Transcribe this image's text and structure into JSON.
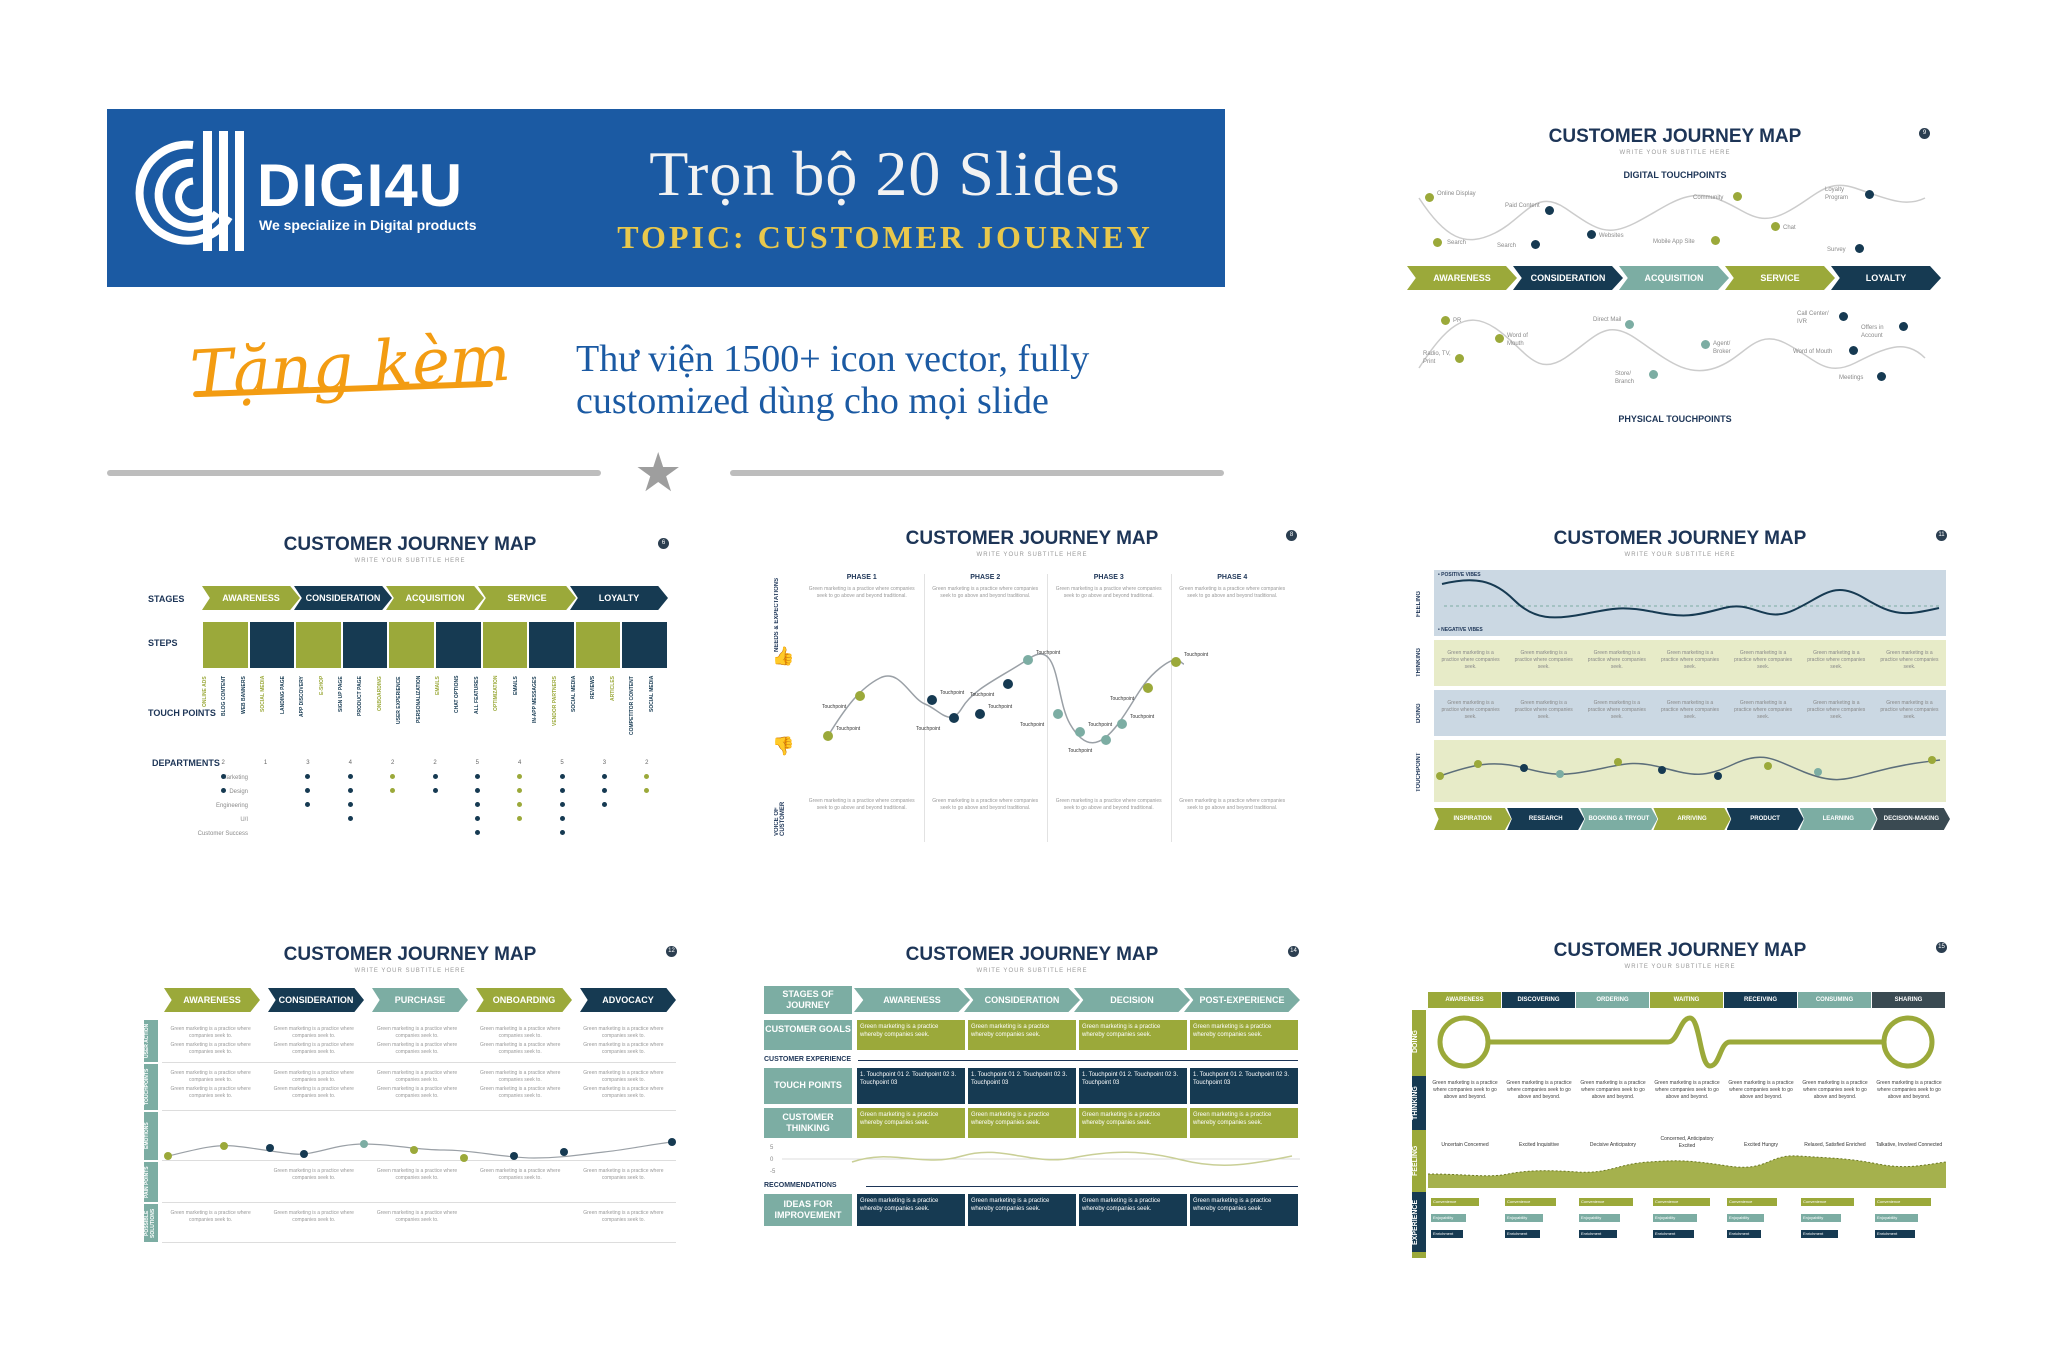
{
  "banner": {
    "logo_text": "DIGI4U",
    "logo_tagline": "We specialize in Digital products",
    "title": "Trọn bộ 20 Slides",
    "topic": "TOPIC: CUSTOMER JOURNEY"
  },
  "gift_label": "Tặng kèm",
  "library_text": "Thư viện 1500+ icon vector, fully customized dùng cho mọi slide",
  "colors": {
    "banner": "#1b5aa3",
    "olive": "#9ba93a",
    "navy": "#163a52",
    "teal": "#7cada3",
    "accent": "#f39c12"
  },
  "slides": {
    "title": "CUSTOMER JOURNEY MAP",
    "subtitle": "WRITE YOUR SUBTITLE HERE",
    "slide_a": {
      "page": "9",
      "digital_heading": "DIGITAL TOUCHPOINTS",
      "physical_heading": "PHYSICAL TOUCHPOINTS",
      "stages": [
        "AWARENESS",
        "CONSIDERATION",
        "ACQUISITION",
        "SERVICE",
        "LOYALTY"
      ],
      "digital_points": [
        "Online Display",
        "Search",
        "Paid Content",
        "Search",
        "Websites",
        "Community",
        "Mobile App Site",
        "Chat",
        "Loyalty Program",
        "Survey"
      ],
      "physical_points": [
        "PR",
        "Radio, TV, Print",
        "Word of Mouth",
        "Direct Mail",
        "Store/ Branch",
        "Agent/ Broker",
        "Call Center/ IVR",
        "Word of Mouth",
        "Offers in Account",
        "Meetings"
      ]
    },
    "slide_b": {
      "page": "6",
      "row_stages": "STAGES",
      "row_steps": "STEPS",
      "row_touch": "TOUCH POINTS",
      "row_departments": "DEPARTMENTS",
      "stages": [
        "AWARENESS",
        "CONSIDERATION",
        "ACQUISITION",
        "SERVICE",
        "LOYALTY"
      ],
      "departments": [
        "Marketing",
        "Design",
        "Engineering",
        "U/I",
        "Customer Success"
      ],
      "touchpoints": [
        "ONLINE ADS",
        "BLOG CONTENT",
        "WEB BANNERS",
        "SOCIAL MEDIA",
        "LANDING PAGE",
        "APP DISCOVERY",
        "E-SHOP",
        "SIGN UP PAGE",
        "PRODUCT PAGE",
        "ONBOARDING",
        "USER EXPERIENCE",
        "PERSONALIZATION",
        "EMAILS",
        "CHAT OPTIONS",
        "ALL FEATURES",
        "OPTIMIZATION",
        "EMAILS",
        "IN-APP MESSAGES",
        "VENDOR PARTNERS",
        "SOCIAL MEDIA",
        "REVIEWS",
        "ARTICLES",
        "COMPETITOR CONTENT",
        "SOCIAL MEDIA"
      ],
      "counts": [
        "2",
        "1",
        "3",
        "4",
        "2",
        "2",
        "5",
        "4",
        "5",
        "3",
        "2"
      ]
    },
    "slide_c": {
      "page": "8",
      "phases": [
        "PHASE 1",
        "PHASE 2",
        "PHASE 3",
        "PHASE 4"
      ],
      "left_top": "NEEDS & EXPECTATIONS",
      "left_bottom": "VOICE OF CUSTOMER",
      "touchpoint": "Touchpoint",
      "body": "Green marketing is a practice where companies seek to go above and beyond traditional."
    },
    "slide_d": {
      "page": "11",
      "positive": "• POSITIVE VIBES",
      "negative": "• NEGATIVE VIBES",
      "rows": [
        "FEELING",
        "THINKING",
        "DOING",
        "TOUCHPOINT"
      ],
      "stages": [
        "INSPIRATION",
        "RESEARCH",
        "BOOKING & TRYOUT",
        "ARRIVING",
        "PRODUCT",
        "LEARNING",
        "DECISION-MAKING"
      ],
      "body": "Green marketing is a practice where companies seek."
    },
    "slide_e": {
      "page": "12",
      "stages": [
        "AWARENESS",
        "CONSIDERATION",
        "PURCHASE",
        "ONBOARDING",
        "ADVOCACY"
      ],
      "rows": [
        "USER ACTION",
        "TOUCHPOINTS",
        "EMOTIONS",
        "PAIN POINTS",
        "POSSIBLE SOLUTIONS"
      ],
      "body": "Green marketing is a practice where companies seek to."
    },
    "slide_f": {
      "page": "14",
      "stages_label": "STAGES OF JOURNEY",
      "stages": [
        "AWARENESS",
        "CONSIDERATION",
        "DECISION",
        "POST-EXPERIENCE"
      ],
      "goals_label": "CUSTOMER GOALS",
      "experience_label": "CUSTOMER EXPERIENCE",
      "touch_label": "TOUCH POINTS",
      "thinking_label": "CUSTOMER THINKING",
      "recommendations_label": "RECOMMENDATIONS",
      "ideas_label": "IDEAS FOR IMPROVEMENT",
      "touch_items": "1. Touchpoint 01 2. Touchpoint 02 3. Touchpoint 03",
      "body": "Green marketing is a practice whereby companies seek.",
      "scale": [
        "5",
        "0",
        "-5"
      ]
    },
    "slide_g": {
      "page": "15",
      "stages": [
        "AWARENESS",
        "DISCOVERING",
        "ORDERING",
        "WAITING",
        "RECEIVING",
        "CONSUMING",
        "SHARING"
      ],
      "rows": [
        "DOING",
        "THINKING",
        "FEELING",
        "EXPERIENCE"
      ],
      "feelings": [
        "Uncertain Concerned",
        "Excited Inquisitive",
        "Decisive Anticipatory",
        "Concerned, Anticipatory Excited",
        "Excited Hungry",
        "Relaxed, Satisfied Enriched",
        "Talkative, Involved Connected"
      ],
      "experience_items": [
        "Convenience",
        "Enjoyability",
        "Enrichment"
      ],
      "body": "Green marketing is a practice where companies seek to go above and beyond."
    }
  }
}
